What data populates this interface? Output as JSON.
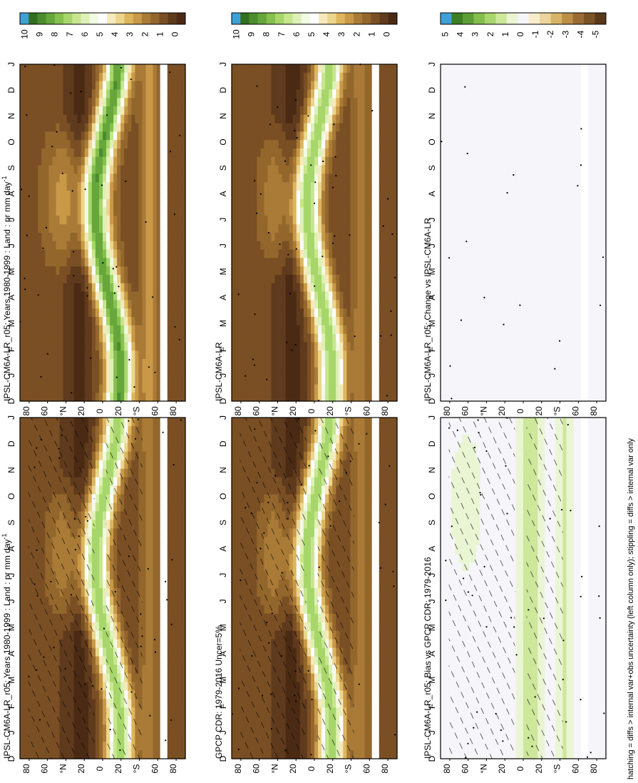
{
  "palettes": {
    "precip": [
      "#4b2a14",
      "#5f3a1c",
      "#7a4f24",
      "#93662c",
      "#a97b37",
      "#c99947",
      "#ddb65c",
      "#ecd58c",
      "#f6e9bb",
      "#ffffff",
      "#f1fae3",
      "#ddf1b7",
      "#c7e68d",
      "#a7d66b",
      "#86c04f",
      "#66a63a",
      "#4b8d2d",
      "#307020",
      "#3fa0d8"
    ],
    "diff": [
      "#5a381a",
      "#7b5226",
      "#9a6b33",
      "#bc8f48",
      "#d8b469",
      "#ecd49a",
      "#f7eccc",
      "#f5f5fa",
      "#eaf5d4",
      "#cde79b",
      "#a9d56d",
      "#84be4d",
      "#5d9d36",
      "#3b7e23",
      "#3fa0d8"
    ]
  },
  "panels": [
    {
      "title": "IPSL-CM6A-LR_r05: Years 1980-1999 : Land : pr mm day",
      "title_sup": "-1",
      "colorbar_ticks": [
        "10",
        "9",
        "8",
        "7",
        "6",
        "5",
        "4",
        "3",
        "2",
        "1",
        "0"
      ],
      "chart_data": {
        "type": "heatmap",
        "variable": "pr",
        "units": "mm day-1",
        "xlabel": "",
        "ylabel": "",
        "x_ticks": [
          "D",
          "J",
          "F",
          "M",
          "A",
          "M",
          "J",
          "J",
          "A",
          "S",
          "O",
          "N",
          "D",
          "J"
        ],
        "y_ticks": [
          "80",
          "60",
          "°N",
          "20",
          "0",
          "20",
          "°S",
          "60",
          "80"
        ],
        "range": [
          0,
          10
        ],
        "hatching": true,
        "stippling": true
      }
    },
    {
      "title": "IPSL-CM6A-LR_r05: Years 1980-1999 : Land : pr mm day",
      "title_sup": "-1",
      "colorbar_ticks": [
        "10",
        "9",
        "8",
        "7",
        "6",
        "5",
        "4",
        "3",
        "2",
        "1",
        "0"
      ],
      "chart_data": {
        "type": "heatmap",
        "variable": "pr",
        "units": "mm day-1",
        "x_ticks": [
          "D",
          "J",
          "F",
          "M",
          "A",
          "M",
          "J",
          "J",
          "A",
          "S",
          "O",
          "N",
          "D",
          "J"
        ],
        "y_ticks": [
          "80",
          "60",
          "°N",
          "20",
          "0",
          "20",
          "°S",
          "60",
          "80"
        ],
        "range": [
          0,
          10
        ],
        "hatching": false,
        "stippling": true
      }
    },
    {
      "title": "GPCP CDR: 1979-2016 Uncer=5%",
      "title_sup": "",
      "colorbar_ticks": [
        "10",
        "9",
        "8",
        "7",
        "6",
        "5",
        "4",
        "3",
        "2",
        "1",
        "0"
      ],
      "chart_data": {
        "type": "heatmap",
        "x_ticks": [
          "D",
          "J",
          "F",
          "M",
          "A",
          "M",
          "J",
          "J",
          "A",
          "S",
          "O",
          "N",
          "D",
          "J"
        ],
        "y_ticks": [
          "80",
          "60",
          "°N",
          "20",
          "0",
          "20",
          "°S",
          "60",
          "80"
        ],
        "range": [
          0,
          10
        ],
        "hatching": true,
        "stippling": true
      }
    },
    {
      "title": "IPSL-CM6A-LR",
      "title_sup": "",
      "colorbar_ticks": [
        "10",
        "9",
        "8",
        "7",
        "6",
        "5",
        "4",
        "3",
        "2",
        "1",
        "0"
      ],
      "chart_data": {
        "type": "heatmap",
        "x_ticks": [
          "D",
          "J",
          "F",
          "M",
          "A",
          "M",
          "J",
          "J",
          "A",
          "S",
          "O",
          "N",
          "D",
          "J"
        ],
        "y_ticks": [
          "80",
          "60",
          "°N",
          "20",
          "0",
          "20",
          "°S",
          "60",
          "80"
        ],
        "range": [
          0,
          10
        ],
        "hatching": false,
        "stippling": true
      }
    },
    {
      "title": "IPSL-CM6A-LR_r05: Bias vs GPCP CDR: 1979-2016",
      "title_sup": "",
      "colorbar_ticks": [
        "5",
        "4",
        "3",
        "2",
        "1",
        "0",
        "-1",
        "-2",
        "-3",
        "-4",
        "-5"
      ],
      "chart_data": {
        "type": "heatmap",
        "x_ticks": [
          "D",
          "J",
          "F",
          "M",
          "A",
          "M",
          "J",
          "J",
          "A",
          "S",
          "O",
          "N",
          "D",
          "J"
        ],
        "y_ticks": [
          "80",
          "60",
          "°N",
          "20",
          "0",
          "20",
          "°S",
          "60",
          "80"
        ],
        "range": [
          -5,
          5
        ],
        "hatching": true,
        "stippling": true
      }
    },
    {
      "title": "IPSL-CM6A-LR_r05: Change vs IPSL-CM6A-LR",
      "title_sup": "",
      "colorbar_ticks": [
        "5",
        "4",
        "3",
        "2",
        "1",
        "0",
        "-1",
        "-2",
        "-3",
        "-4",
        "-5"
      ],
      "chart_data": {
        "type": "heatmap",
        "x_ticks": [
          "D",
          "J",
          "F",
          "M",
          "A",
          "M",
          "J",
          "J",
          "A",
          "S",
          "O",
          "N",
          "D",
          "J"
        ],
        "y_ticks": [
          "80",
          "60",
          "°N",
          "20",
          "0",
          "20",
          "°S",
          "60",
          "80"
        ],
        "range": [
          -5,
          5
        ],
        "hatching": false,
        "stippling": true
      }
    }
  ],
  "footer": "hatching = diffs > internal var+obs uncertainty (left column only); stippling = diffs > internal var only"
}
